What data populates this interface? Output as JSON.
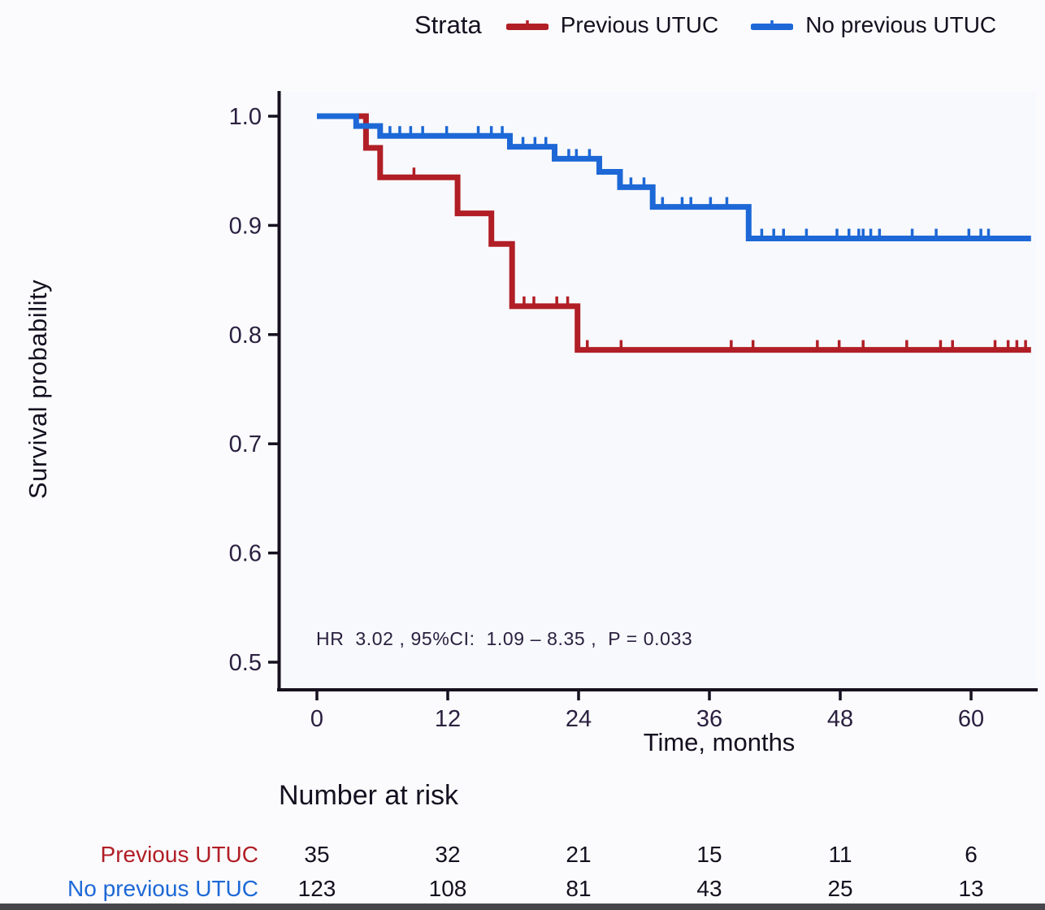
{
  "figure": {
    "legend": {
      "title": "Strata",
      "entries": [
        {
          "label": "Previous UTUC",
          "color": "#b11e26"
        },
        {
          "label": "No previous UTUC",
          "color": "#1d68d6"
        }
      ]
    }
  },
  "colors": {
    "red": "#b11e26",
    "blue": "#1d68d6",
    "axis": "#16101f",
    "tick_label": "#2b2040",
    "text": "#15101f",
    "panel": "#f8f9fc",
    "bottom_bar": "#47474b"
  },
  "chart_data": {
    "type": "line",
    "subtype": "kaplan-meier-step-curve",
    "title": "",
    "xlabel": "Time, months",
    "ylabel": "Survival probability",
    "x_ticks": [
      0,
      12,
      24,
      36,
      48,
      60
    ],
    "y_tick_labels": [
      "1.0",
      "0.9",
      "0.8",
      "0.7",
      "0.6",
      "0.5"
    ],
    "xlim": [
      0,
      65.5
    ],
    "ylim": [
      0.5,
      1.0
    ],
    "grid": false,
    "legend_position": "top",
    "legend_title": "Strata",
    "annotation": "HR  3.02 , 95%CI:  1.09 – 8.35 ,  P = 0.033",
    "series": [
      {
        "name": "Previous UTUC",
        "color": "#b11e26",
        "steps": [
          [
            0,
            1.0
          ],
          [
            4.5,
            1.0
          ],
          [
            4.5,
            0.971
          ],
          [
            5.8,
            0.971
          ],
          [
            5.8,
            0.944
          ],
          [
            12.9,
            0.944
          ],
          [
            12.9,
            0.911
          ],
          [
            16.0,
            0.911
          ],
          [
            16.0,
            0.883
          ],
          [
            17.9,
            0.883
          ],
          [
            17.9,
            0.826
          ],
          [
            23.9,
            0.826
          ],
          [
            23.9,
            0.786
          ],
          [
            65.5,
            0.786
          ]
        ],
        "censors": [
          [
            8.9,
            0.944
          ],
          [
            19.0,
            0.826
          ],
          [
            19.9,
            0.826
          ],
          [
            22.0,
            0.826
          ],
          [
            23.0,
            0.826
          ],
          [
            24.8,
            0.786
          ],
          [
            27.9,
            0.786
          ],
          [
            38.0,
            0.786
          ],
          [
            40.0,
            0.786
          ],
          [
            45.9,
            0.786
          ],
          [
            47.9,
            0.786
          ],
          [
            50.1,
            0.786
          ],
          [
            54.1,
            0.786
          ],
          [
            57.2,
            0.786
          ],
          [
            58.3,
            0.786
          ],
          [
            62.2,
            0.786
          ],
          [
            63.4,
            0.786
          ],
          [
            64.2,
            0.786
          ],
          [
            65.0,
            0.786
          ]
        ]
      },
      {
        "name": "No previous UTUC",
        "color": "#1d68d6",
        "steps": [
          [
            0,
            1.0
          ],
          [
            3.6,
            1.0
          ],
          [
            3.6,
            0.991
          ],
          [
            5.8,
            0.991
          ],
          [
            5.8,
            0.982
          ],
          [
            17.7,
            0.982
          ],
          [
            17.7,
            0.972
          ],
          [
            21.8,
            0.972
          ],
          [
            21.8,
            0.961
          ],
          [
            25.9,
            0.961
          ],
          [
            25.9,
            0.949
          ],
          [
            27.8,
            0.949
          ],
          [
            27.8,
            0.935
          ],
          [
            30.8,
            0.935
          ],
          [
            30.8,
            0.917
          ],
          [
            39.6,
            0.917
          ],
          [
            39.6,
            0.888
          ],
          [
            65.5,
            0.888
          ]
        ],
        "censors": [
          [
            6.7,
            0.982
          ],
          [
            7.6,
            0.982
          ],
          [
            8.6,
            0.982
          ],
          [
            9.7,
            0.982
          ],
          [
            11.9,
            0.982
          ],
          [
            14.8,
            0.982
          ],
          [
            16.0,
            0.982
          ],
          [
            17.0,
            0.982
          ],
          [
            18.9,
            0.972
          ],
          [
            20.0,
            0.972
          ],
          [
            21.0,
            0.972
          ],
          [
            23.1,
            0.961
          ],
          [
            23.8,
            0.961
          ],
          [
            25.0,
            0.961
          ],
          [
            28.8,
            0.935
          ],
          [
            30.0,
            0.935
          ],
          [
            31.7,
            0.917
          ],
          [
            33.5,
            0.917
          ],
          [
            34.3,
            0.917
          ],
          [
            36.1,
            0.917
          ],
          [
            37.6,
            0.917
          ],
          [
            40.8,
            0.888
          ],
          [
            41.9,
            0.888
          ],
          [
            42.8,
            0.888
          ],
          [
            44.9,
            0.888
          ],
          [
            47.7,
            0.888
          ],
          [
            48.8,
            0.888
          ],
          [
            49.7,
            0.888
          ],
          [
            50.1,
            0.888
          ],
          [
            50.8,
            0.888
          ],
          [
            51.6,
            0.888
          ],
          [
            54.6,
            0.888
          ],
          [
            56.8,
            0.888
          ],
          [
            59.8,
            0.888
          ],
          [
            60.9,
            0.888
          ],
          [
            61.6,
            0.888
          ]
        ]
      }
    ],
    "risk_table": {
      "title": "Number at risk",
      "times": [
        0,
        12,
        24,
        36,
        48,
        60
      ],
      "rows": [
        {
          "label": "Previous UTUC",
          "color": "#b11e26",
          "values": [
            35,
            32,
            21,
            15,
            11,
            6
          ]
        },
        {
          "label": "No previous UTUC",
          "color": "#1d68d6",
          "values": [
            123,
            108,
            81,
            43,
            25,
            13
          ]
        }
      ]
    }
  }
}
